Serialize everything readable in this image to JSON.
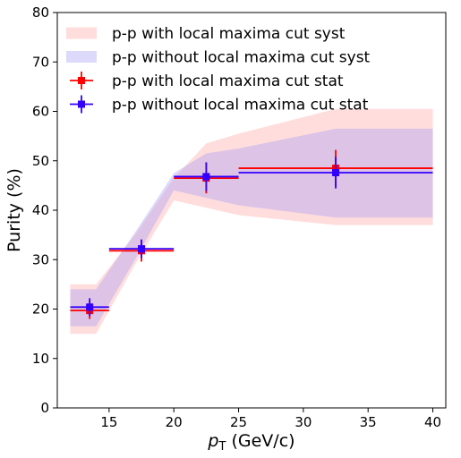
{
  "chart_data": {
    "type": "scatter",
    "xlabel_main": "p",
    "xlabel_sub": "T",
    "xlabel_rest": " (GeV/c)",
    "ylabel": "Purity (%)",
    "xlim": [
      11,
      41
    ],
    "ylim": [
      0,
      80
    ],
    "xticks": [
      15,
      20,
      25,
      30,
      35,
      40
    ],
    "yticks": [
      0,
      10,
      20,
      30,
      40,
      50,
      60,
      70,
      80
    ],
    "grid": false,
    "legend_position": "top-left",
    "syst_bands": [
      {
        "name": "p-p with local maxima cut syst",
        "fill": "#ffb3b3",
        "opacity": 0.45,
        "x": [
          12,
          14,
          17,
          20,
          22.5,
          25,
          32.5,
          40
        ],
        "lower": [
          15.0,
          15.0,
          29.0,
          42.0,
          40.5,
          39.0,
          37.0,
          37.0
        ],
        "upper": [
          25.0,
          25.0,
          35.0,
          46.5,
          53.5,
          55.5,
          60.5,
          60.5
        ]
      },
      {
        "name": "p-p without local maxima cut syst",
        "fill": "#a9a0f5",
        "opacity": 0.4,
        "x": [
          12,
          14,
          17,
          20,
          22.5,
          25,
          32.5,
          40
        ],
        "lower": [
          16.5,
          16.5,
          30.0,
          44.0,
          42.5,
          41.0,
          38.5,
          38.5
        ],
        "upper": [
          24.0,
          24.0,
          35.5,
          47.5,
          51.5,
          52.5,
          56.5,
          56.5
        ]
      }
    ],
    "series": [
      {
        "name": "p-p with local maxima cut stat",
        "color": "#ff0000",
        "points": [
          {
            "x": 13.5,
            "xerr": 1.5,
            "y": 19.7,
            "yerr": 1.7
          },
          {
            "x": 17.5,
            "xerr": 2.5,
            "y": 31.8,
            "yerr": 2.2
          },
          {
            "x": 22.5,
            "xerr": 2.5,
            "y": 46.5,
            "yerr": 3.1
          },
          {
            "x": 32.5,
            "xerr": 7.5,
            "y": 48.5,
            "yerr": 3.7
          }
        ]
      },
      {
        "name": "p-p without local maxima cut stat",
        "color": "#3300ff",
        "points": [
          {
            "x": 13.5,
            "xerr": 1.5,
            "y": 20.4,
            "yerr": 1.8
          },
          {
            "x": 17.5,
            "xerr": 2.5,
            "y": 32.2,
            "yerr": 1.9
          },
          {
            "x": 22.5,
            "xerr": 2.5,
            "y": 46.8,
            "yerr": 2.9
          },
          {
            "x": 32.5,
            "xerr": 7.5,
            "y": 47.6,
            "yerr": 3.2
          }
        ]
      }
    ]
  }
}
